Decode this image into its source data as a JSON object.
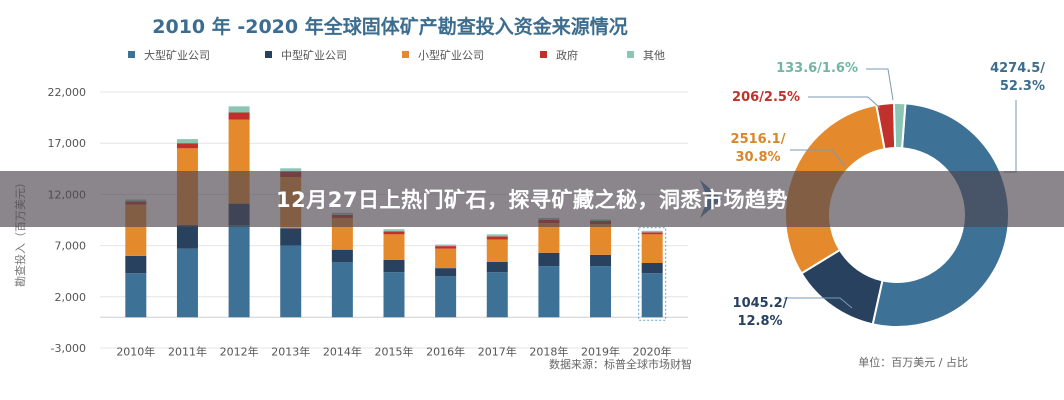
{
  "colors": {
    "large": "#3e7196",
    "medium": "#27415f",
    "small": "#e48a2c",
    "government": "#c0312b",
    "other": "#8bc5b4",
    "title": "#3d6d8e",
    "axis_text": "#666666",
    "donut_label_large": "#3d6d8e",
    "donut_label_medium": "#27415f",
    "donut_label_small": "#d9862a",
    "donut_label_government": "#c0312b",
    "donut_label_other": "#6fb6a3"
  },
  "overlay": {
    "title": "12月27日上热门矿石，探寻矿藏之秘，洞悉市场趋势"
  },
  "chart_data": [
    {
      "type": "bar",
      "stacked": true,
      "title": "2010 年 -2020 年全球固体矿产勘查投入资金来源情况",
      "ylabel": "勘查投入（百万美元）",
      "ylim": [
        -3000,
        22000
      ],
      "yticks": [
        "22,000",
        "17,000",
        "12,000",
        "7,000",
        "2,000",
        "-3,000"
      ],
      "ytick_values": [
        22000,
        17000,
        12000,
        7000,
        2000,
        -3000
      ],
      "grid": true,
      "legend_position": "top",
      "categories": [
        "2010年",
        "2011年",
        "2012年",
        "2013年",
        "2014年",
        "2015年",
        "2016年",
        "2017年",
        "2018年",
        "2019年",
        "2020年"
      ],
      "series": [
        {
          "name": "大型矿业公司",
          "color_key": "large",
          "values": [
            4300,
            6700,
            9000,
            7000,
            5400,
            4400,
            4000,
            4400,
            5000,
            5000,
            4300
          ]
        },
        {
          "name": "中型矿业公司",
          "color_key": "medium",
          "values": [
            1700,
            2300,
            2100,
            1700,
            1200,
            1200,
            800,
            1000,
            1300,
            1100,
            1000
          ]
        },
        {
          "name": "小型矿业公司",
          "color_key": "small",
          "values": [
            5000,
            7500,
            8200,
            5000,
            3100,
            2500,
            1900,
            2200,
            2900,
            3000,
            2800
          ]
        },
        {
          "name": "政府",
          "color_key": "government",
          "values": [
            300,
            500,
            700,
            500,
            300,
            300,
            250,
            300,
            300,
            300,
            200
          ]
        },
        {
          "name": "其他",
          "color_key": "other",
          "values": [
            200,
            400,
            600,
            350,
            200,
            200,
            150,
            200,
            200,
            150,
            150
          ]
        }
      ],
      "source_note": "数据来源：标普全球市场财智"
    },
    {
      "type": "pie",
      "donut": true,
      "unit_note": "单位：百万美元 / 占比",
      "slices": [
        {
          "label": "4274.5/\n52.3%",
          "value": 4274.5,
          "percent": 52.3,
          "color_key": "large",
          "label_color_key": "donut_label_large"
        },
        {
          "label": "1045.2/\n12.8%",
          "value": 1045.2,
          "percent": 12.8,
          "color_key": "medium",
          "label_color_key": "donut_label_medium"
        },
        {
          "label": "2516.1/\n30.8%",
          "value": 2516.1,
          "percent": 30.8,
          "color_key": "small",
          "label_color_key": "donut_label_small"
        },
        {
          "label": "206/2.5%",
          "value": 206,
          "percent": 2.5,
          "color_key": "government",
          "label_color_key": "donut_label_government"
        },
        {
          "label": "133.6/1.6%",
          "value": 133.6,
          "percent": 1.6,
          "color_key": "other",
          "label_color_key": "donut_label_other"
        }
      ]
    }
  ]
}
